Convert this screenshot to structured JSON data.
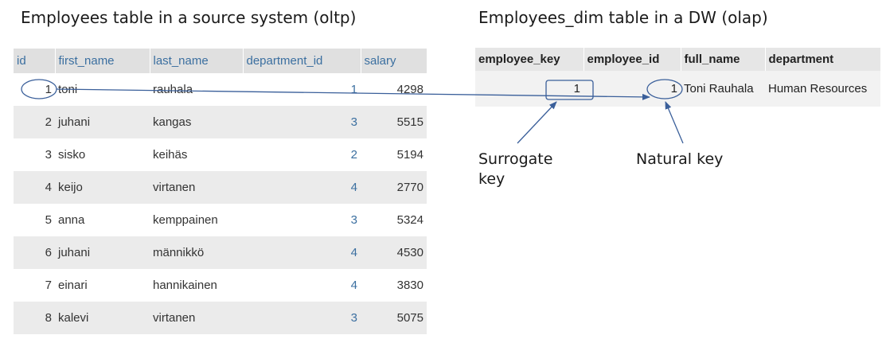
{
  "left_title": "Employees table in a source system (oltp)",
  "right_title": "Employees_dim table in a DW (olap)",
  "employees": {
    "headers": [
      "id",
      "first_name",
      "last_name",
      "department_id",
      "salary"
    ],
    "rows": [
      {
        "id": "1",
        "first_name": "toni",
        "last_name": "rauhala",
        "department_id": "1",
        "salary": "4298"
      },
      {
        "id": "2",
        "first_name": "juhani",
        "last_name": "kangas",
        "department_id": "3",
        "salary": "5515"
      },
      {
        "id": "3",
        "first_name": "sisko",
        "last_name": "keihäs",
        "department_id": "2",
        "salary": "5194"
      },
      {
        "id": "4",
        "first_name": "keijo",
        "last_name": "virtanen",
        "department_id": "4",
        "salary": "2770"
      },
      {
        "id": "5",
        "first_name": "anna",
        "last_name": "kemppainen",
        "department_id": "3",
        "salary": "5324"
      },
      {
        "id": "6",
        "first_name": "juhani",
        "last_name": "männikkö",
        "department_id": "4",
        "salary": "4530"
      },
      {
        "id": "7",
        "first_name": "einari",
        "last_name": "hannikainen",
        "department_id": "4",
        "salary": "3830"
      },
      {
        "id": "8",
        "first_name": "kalevi",
        "last_name": "virtanen",
        "department_id": "3",
        "salary": "5075"
      }
    ]
  },
  "employees_dim": {
    "headers": [
      "employee_key",
      "employee_id",
      "full_name",
      "department"
    ],
    "rows": [
      {
        "employee_key": "1",
        "employee_id": "1",
        "full_name": "Toni Rauhala",
        "department": "Human Resources"
      }
    ]
  },
  "callouts": {
    "surrogate_line1": "Surrogate",
    "surrogate_line2": "key",
    "natural": "Natural key"
  },
  "colors": {
    "header_text_left": "#3b6fa0",
    "annotation_stroke": "#3a5f9a",
    "row_alt": "#ebebeb"
  }
}
